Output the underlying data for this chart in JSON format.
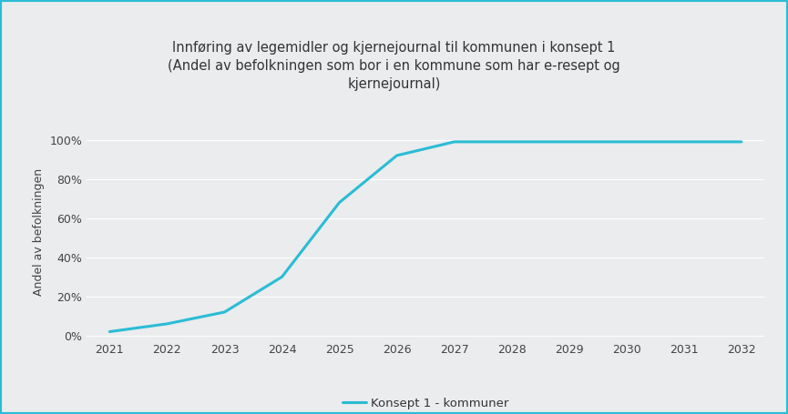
{
  "title_line1": "Innføring av legemidler og kjernejournal til kommunen i konsept 1",
  "title_line2": "(Andel av befolkningen som bor i en kommune som har e-resept og",
  "title_line3": "kjernejournal)",
  "ylabel": "Andel av befolkningen",
  "legend_label": "Konsept 1 - kommuner",
  "x_years": [
    2021,
    2022,
    2023,
    2024,
    2025,
    2026,
    2027,
    2028,
    2029,
    2030,
    2031,
    2032
  ],
  "y_values": [
    0.02,
    0.06,
    0.12,
    0.3,
    0.68,
    0.92,
    0.99,
    0.99,
    0.99,
    0.99,
    0.99,
    0.99
  ],
  "line_color": "#2BBCD4",
  "line_width": 2.2,
  "background_color": "#EAECEE",
  "plot_bg_color": "#EAECEE",
  "border_color": "#2BBCD4",
  "grid_color": "#FFFFFF",
  "title_fontsize": 10.5,
  "ylabel_fontsize": 9,
  "tick_fontsize": 9,
  "legend_fontsize": 9.5,
  "ylim": [
    -0.02,
    1.08
  ],
  "yticks": [
    0.0,
    0.2,
    0.4,
    0.6,
    0.8,
    1.0
  ],
  "ytick_labels": [
    "0%",
    "20%",
    "40%",
    "60%",
    "80%",
    "100%"
  ]
}
